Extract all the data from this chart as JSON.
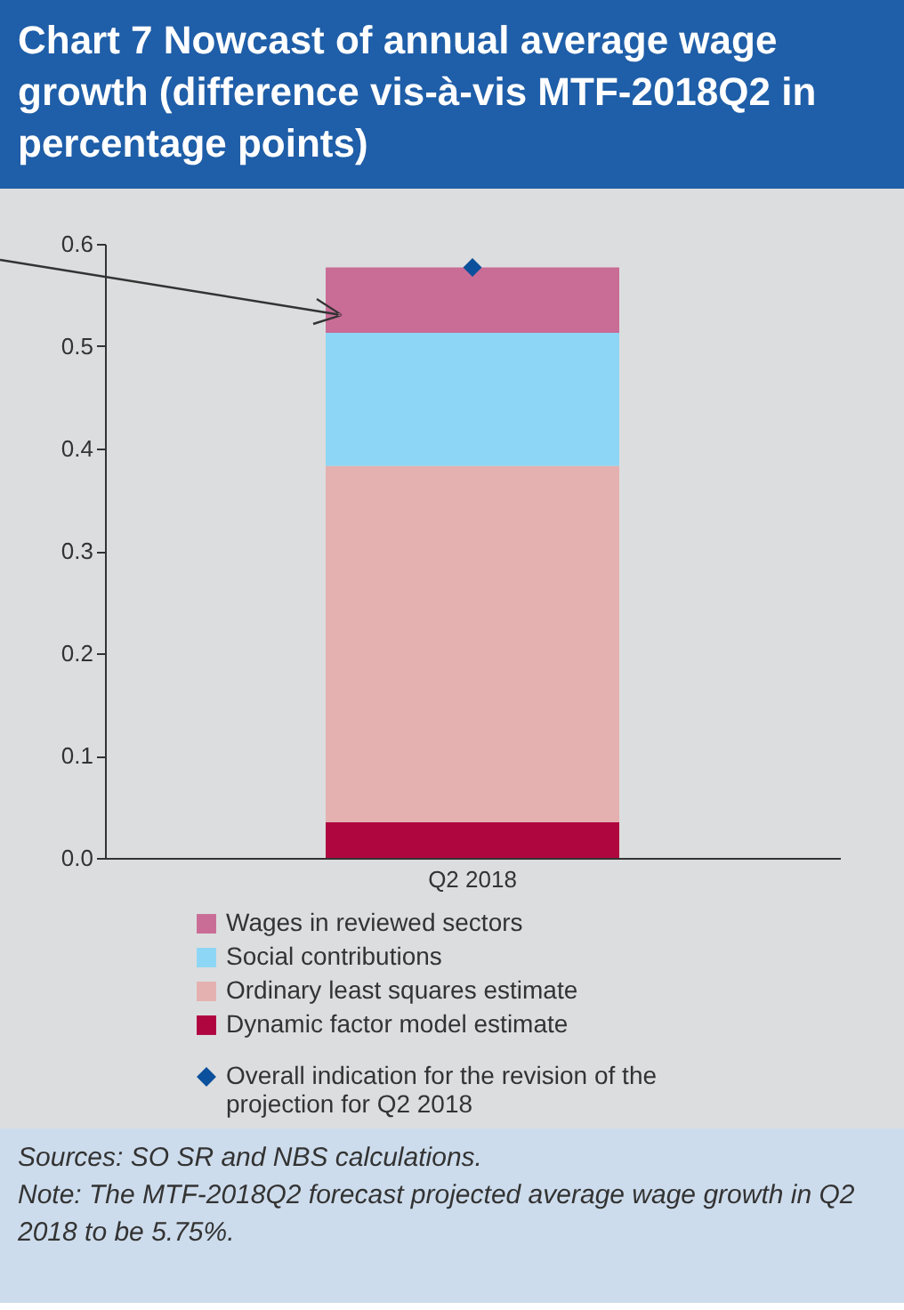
{
  "chart_data": {
    "type": "bar",
    "title": "Chart 7 Nowcast of annual average wage growth (difference vis-à-vis MTF-2018Q2 in percentage points)",
    "categories": [
      "Q2 2018"
    ],
    "stacked": true,
    "series": [
      {
        "name": "Dynamic factor model estimate",
        "color": "#b0063f",
        "values": [
          0.035
        ]
      },
      {
        "name": "Ordinary least squares estimate",
        "color": "#e4b1b0",
        "values": [
          0.348
        ]
      },
      {
        "name": "Social contributions",
        "color": "#8dd6f5",
        "values": [
          0.13
        ]
      },
      {
        "name": "Wages in reviewed sectors",
        "color": "#c96c96",
        "values": [
          0.064
        ]
      },
      {
        "name": "Overall indication for the revision of the projection for Q2 2018",
        "type": "scatter",
        "color": "#0a509c",
        "marker": "diamond",
        "values": [
          0.577
        ]
      }
    ],
    "ylim": [
      0,
      0.6
    ],
    "yticks": [
      {
        "value": 0,
        "label": "0.0"
      },
      0.1,
      0.2,
      0.3,
      0.4,
      0.5,
      0.6
    ],
    "legend": "bottom",
    "annotations": [
      "Sources: SO SR and NBS calculations.",
      "Note: The MTF-2018Q2 forecast projected average wage growth in Q2 2018 to be 5.75%."
    ]
  }
}
